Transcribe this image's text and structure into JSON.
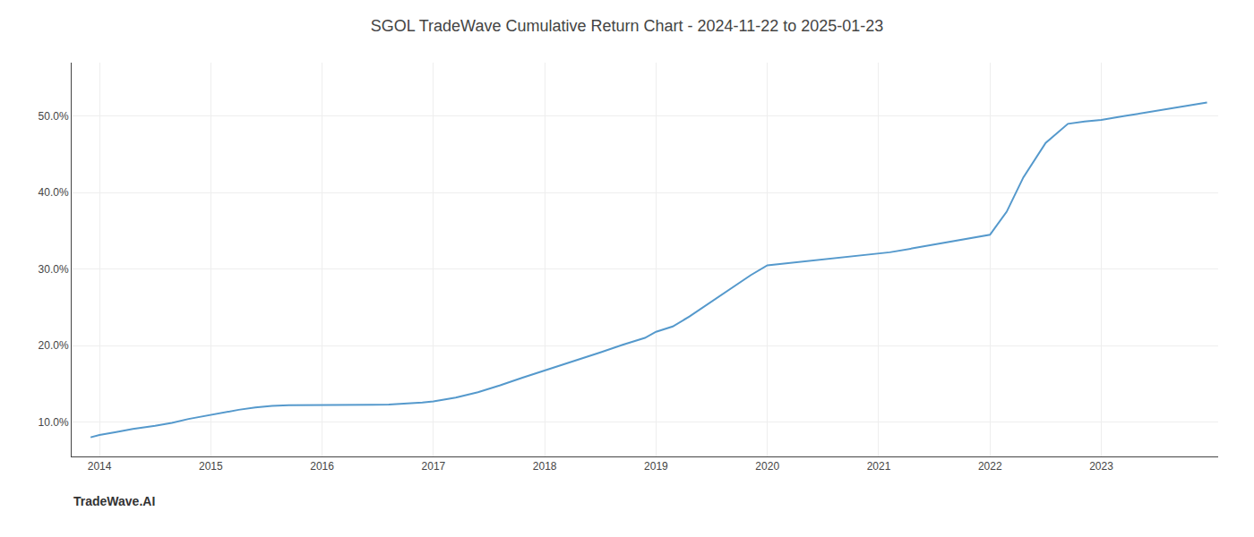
{
  "chart_data": {
    "type": "line",
    "title": "SGOL TradeWave Cumulative Return Chart - 2024-11-22 to 2025-01-23",
    "annotations": [
      "TradeWave.AI"
    ],
    "color": "#5599cc",
    "grid": true,
    "x": [
      2013.92,
      2014.0,
      2014.15,
      2014.3,
      2014.5,
      2014.65,
      2014.8,
      2014.95,
      2015.1,
      2015.25,
      2015.4,
      2015.55,
      2015.7,
      2015.85,
      2016.0,
      2016.15,
      2016.3,
      2016.45,
      2016.6,
      2016.75,
      2016.9,
      2017.0,
      2017.2,
      2017.4,
      2017.6,
      2017.8,
      2017.95,
      2018.1,
      2018.3,
      2018.5,
      2018.7,
      2018.9,
      2019.0,
      2019.15,
      2019.3,
      2019.5,
      2019.7,
      2019.85,
      2020.0,
      2020.2,
      2020.4,
      2020.6,
      2020.8,
      2020.95,
      2021.1,
      2021.3,
      2021.5,
      2021.7,
      2021.9,
      2022.0,
      2022.15,
      2022.3,
      2022.5,
      2022.7,
      2022.85,
      2023.0,
      2023.2,
      2023.4,
      2023.6,
      2023.8,
      2023.95
    ],
    "values": [
      8.0,
      8.3,
      8.7,
      9.1,
      9.5,
      9.9,
      10.4,
      10.8,
      11.2,
      11.6,
      11.9,
      12.1,
      12.2,
      12.2,
      12.2,
      12.2,
      12.2,
      12.25,
      12.3,
      12.4,
      12.55,
      12.7,
      13.2,
      13.9,
      14.8,
      15.8,
      16.5,
      17.2,
      18.1,
      19.1,
      20.1,
      21.0,
      21.8,
      22.5,
      23.8,
      25.8,
      27.8,
      29.2,
      30.5,
      30.8,
      31.1,
      31.4,
      31.7,
      31.9,
      32.2,
      32.7,
      33.2,
      33.7,
      34.2,
      34.5,
      37.5,
      42.0,
      46.5,
      49.0,
      49.3,
      49.5,
      50.0,
      50.5,
      51.0,
      51.5,
      51.8
    ],
    "xlim": [
      2013.75,
      2024.05
    ],
    "xticks": [
      2014,
      2015,
      2016,
      2017,
      2018,
      2019,
      2020,
      2021,
      2022,
      2023
    ],
    "ylim": [
      5.5,
      57.0
    ],
    "yticks": [
      {
        "value": 10.0,
        "label": "10.0%"
      },
      {
        "value": 20.0,
        "label": "20.0%"
      },
      {
        "value": 30.0,
        "label": "30.0%"
      },
      {
        "value": 40.0,
        "label": "40.0%"
      },
      {
        "value": 50.0,
        "label": "50.0%"
      }
    ]
  }
}
